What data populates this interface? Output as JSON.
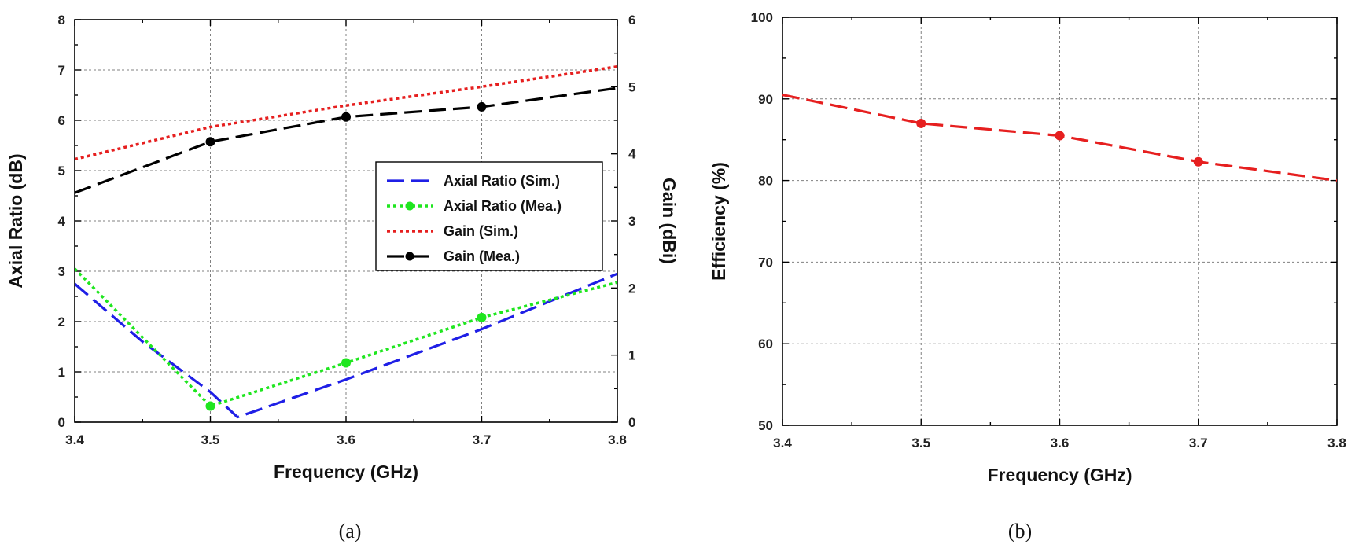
{
  "chart_data": [
    {
      "id": "a",
      "type": "line",
      "caption_letter": "a",
      "xlabel": "Frequency (GHz)",
      "ylabel": "Axial Ratio (dB)",
      "y2label": "Gain (dBi)",
      "xlim": [
        3.4,
        3.8
      ],
      "ylim": [
        0,
        8
      ],
      "y2lim": [
        0,
        6
      ],
      "xticks": [
        "3.4",
        "3.5",
        "3.6",
        "3.7",
        "3.8"
      ],
      "yticks": [
        "0",
        "1",
        "2",
        "3",
        "4",
        "5",
        "6",
        "7",
        "8"
      ],
      "y2ticks": [
        "0",
        "1",
        "2",
        "3",
        "4",
        "5",
        "6"
      ],
      "grid": true,
      "legend_position": "center-right",
      "series": [
        {
          "name": "Axial Ratio (Sim.)",
          "axis": "left",
          "color": "#1f1fe6",
          "style": "dashed",
          "markers": false,
          "x": [
            3.4,
            3.45,
            3.5,
            3.52,
            3.6,
            3.7,
            3.8
          ],
          "y": [
            2.75,
            1.6,
            0.6,
            0.1,
            0.85,
            1.85,
            2.95
          ]
        },
        {
          "name": "Axial Ratio (Mea.)",
          "axis": "left",
          "color": "#1fe61f",
          "style": "dotted",
          "markers": true,
          "x": [
            3.4,
            3.5,
            3.6,
            3.7,
            3.8
          ],
          "y": [
            3.05,
            0.32,
            1.18,
            2.08,
            2.78
          ]
        },
        {
          "name": "Gain (Sim.)",
          "axis": "right",
          "color": "#e61f1f",
          "style": "dotted",
          "markers": false,
          "x": [
            3.4,
            3.5,
            3.6,
            3.7,
            3.8
          ],
          "y": [
            3.92,
            4.4,
            4.72,
            5.0,
            5.3
          ]
        },
        {
          "name": "Gain (Mea.)",
          "axis": "right",
          "color": "#000000",
          "style": "dashed",
          "markers": true,
          "x": [
            3.4,
            3.5,
            3.6,
            3.7,
            3.8
          ],
          "y": [
            3.42,
            4.18,
            4.55,
            4.7,
            4.98
          ]
        }
      ]
    },
    {
      "id": "b",
      "type": "line",
      "caption_letter": "b",
      "xlabel": "Frequency (GHz)",
      "ylabel": "Efficiency (%)",
      "xlim": [
        3.4,
        3.8
      ],
      "ylim": [
        50,
        100
      ],
      "xticks": [
        "3.4",
        "3.5",
        "3.6",
        "3.7",
        "3.8"
      ],
      "yticks": [
        "50",
        "60",
        "70",
        "80",
        "90",
        "100"
      ],
      "grid": true,
      "series": [
        {
          "name": "Efficiency",
          "color": "#e61f1f",
          "style": "dashed",
          "markers": true,
          "marker_x": [
            3.5,
            3.6,
            3.7
          ],
          "x": [
            3.4,
            3.5,
            3.6,
            3.7,
            3.8
          ],
          "y": [
            90.5,
            87.0,
            85.5,
            82.3,
            80.0
          ]
        }
      ]
    }
  ]
}
